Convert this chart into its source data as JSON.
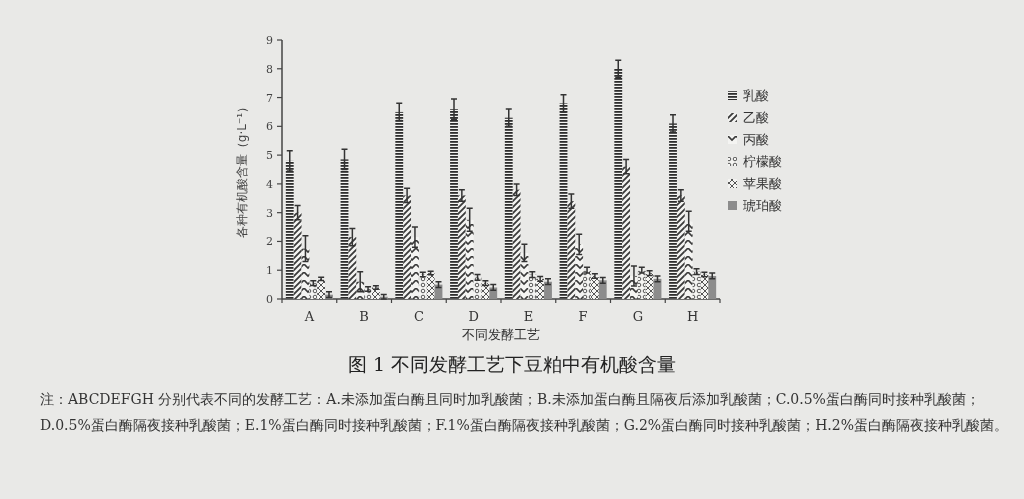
{
  "chart_data": {
    "type": "bar",
    "title": "图 1 不同发酵工艺下豆粕中有机酸含量",
    "xlabel": "不同发酵工艺",
    "ylabel": "各种有机酸含量（g·L⁻¹）",
    "categories": [
      "A",
      "B",
      "C",
      "D",
      "E",
      "F",
      "G",
      "H"
    ],
    "series": [
      {
        "name": "乳酸",
        "color": "#2e2e2e",
        "values": [
          4.8,
          4.85,
          6.5,
          6.6,
          6.3,
          6.8,
          8.0,
          6.1
        ],
        "errors": [
          0.35,
          0.35,
          0.3,
          0.35,
          0.3,
          0.3,
          0.3,
          0.3
        ]
      },
      {
        "name": "乙酸",
        "color": "#3a3a3a",
        "values": [
          3.0,
          2.15,
          3.6,
          3.6,
          3.8,
          3.4,
          4.6,
          3.6
        ],
        "errors": [
          0.25,
          0.3,
          0.25,
          0.2,
          0.2,
          0.25,
          0.25,
          0.2
        ]
      },
      {
        "name": "丙酸",
        "color": "#3a3a3a",
        "values": [
          1.75,
          0.6,
          2.15,
          2.75,
          1.6,
          1.9,
          0.8,
          2.7
        ],
        "errors": [
          0.45,
          0.35,
          0.35,
          0.4,
          0.3,
          0.35,
          0.35,
          0.35
        ]
      },
      {
        "name": "柠檬酸",
        "color": "#555555",
        "values": [
          0.55,
          0.35,
          0.85,
          0.75,
          0.85,
          1.0,
          1.0,
          0.95
        ],
        "errors": [
          0.08,
          0.08,
          0.08,
          0.1,
          0.1,
          0.1,
          0.1,
          0.1
        ]
      },
      {
        "name": "苹果酸",
        "color": "#555555",
        "values": [
          0.7,
          0.4,
          0.9,
          0.55,
          0.7,
          0.8,
          0.9,
          0.85
        ],
        "errors": [
          0.06,
          0.06,
          0.06,
          0.08,
          0.08,
          0.08,
          0.08,
          0.08
        ]
      },
      {
        "name": "琥珀酸",
        "color": "#8c8c8c",
        "values": [
          0.15,
          0.08,
          0.5,
          0.4,
          0.6,
          0.65,
          0.7,
          0.8
        ],
        "errors": [
          0.1,
          0.08,
          0.1,
          0.1,
          0.1,
          0.1,
          0.1,
          0.1
        ]
      }
    ],
    "ylim": [
      0,
      9
    ],
    "yticks": [
      0,
      1,
      2,
      3,
      4,
      5,
      6,
      7,
      8,
      9
    ],
    "legend": "right",
    "annotations": [
      "注：ABCDEFGH 分别代表不同的发酵工艺：A.未添加蛋白酶且同时加乳酸菌；B.未添加蛋白酶且隔夜后添加乳酸菌；C.0.5%蛋白酶同时接种乳酸菌；D.0.5%蛋白酶隔夜接种乳酸菌；E.1%蛋白酶同时接种乳酸菌；F.1%蛋白酶隔夜接种乳酸菌；G.2%蛋白酶同时接种乳酸菌；H.2%蛋白酶隔夜接种乳酸菌。"
    ]
  }
}
